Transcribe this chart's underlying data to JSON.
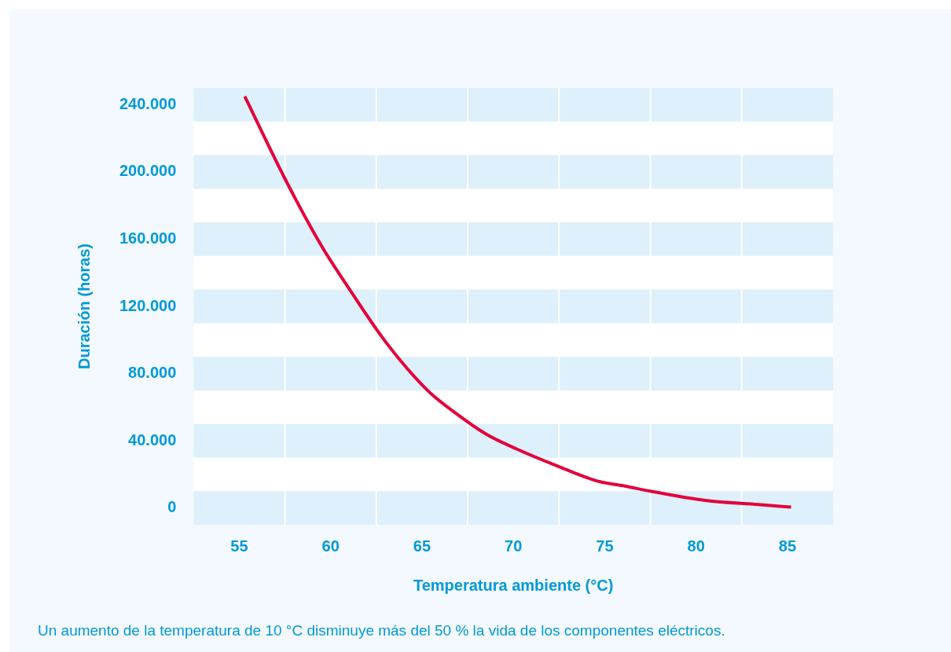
{
  "chart_data": {
    "type": "line",
    "xlabel": "Temperatura ambiente (°C)",
    "ylabel": "Duración (horas)",
    "x": [
      55.3,
      57.5,
      59.5,
      60.8,
      63.0,
      65.3,
      66.9,
      68.5,
      70.2,
      72.4,
      74.6,
      76.1,
      77.5,
      80.5,
      83.4,
      85.2
    ],
    "series": [
      {
        "color": "#e4003a",
        "values": [
          245000,
          196000,
          156000,
          134000,
          99000,
          70000,
          56000,
          44000,
          35000,
          25000,
          16000,
          13000,
          10000,
          4500,
          2000,
          500
        ]
      }
    ],
    "xlim": [
      52.5,
      87.5
    ],
    "xticks": [
      55,
      60,
      65,
      70,
      75,
      80,
      85
    ],
    "ylim": [
      -10000,
      250000
    ],
    "yticks": [
      {
        "value": 0,
        "label": "0"
      },
      {
        "value": 40000,
        "label": "40.000"
      },
      {
        "value": 80000,
        "label": "80.000"
      },
      {
        "value": 120000,
        "label": "120.000"
      },
      {
        "value": 160000,
        "label": "160.000"
      },
      {
        "value": 200000,
        "label": "200.000"
      },
      {
        "value": 240000,
        "label": "240.000"
      }
    ],
    "bands": [
      {
        "axis": "y",
        "from": -10000,
        "to": 10000,
        "color": "#ddf0fb"
      },
      {
        "axis": "y",
        "from": 30000,
        "to": 50000,
        "color": "#ddf0fb"
      },
      {
        "axis": "y",
        "from": 70000,
        "to": 90000,
        "color": "#ddf0fb"
      },
      {
        "axis": "y",
        "from": 110000,
        "to": 130000,
        "color": "#ddf0fb"
      },
      {
        "axis": "y",
        "from": 150000,
        "to": 170000,
        "color": "#ddf0fb"
      },
      {
        "axis": "y",
        "from": 190000,
        "to": 210000,
        "color": "#ddf0fb"
      },
      {
        "axis": "y",
        "from": 230000,
        "to": 250000,
        "color": "#ddf0fb"
      }
    ],
    "grid": "x",
    "legend": false,
    "marker": "none",
    "line_style": "solid",
    "annotations": [
      "Un aumento de la temperatura de 10 °C disminuye más del 50 % la vida de los componentes eléctricos."
    ]
  }
}
